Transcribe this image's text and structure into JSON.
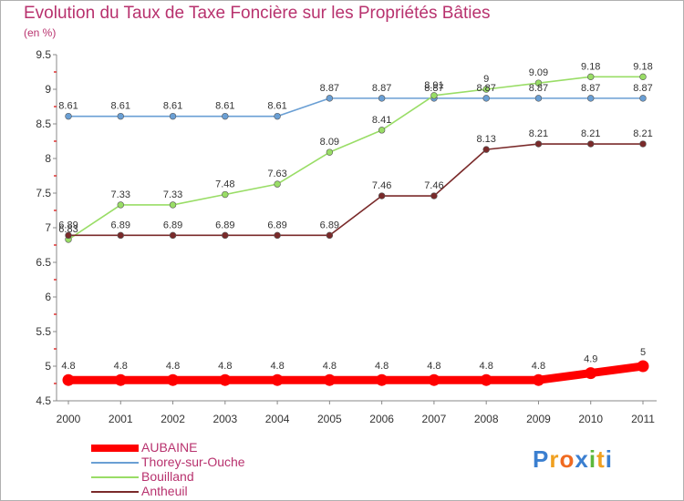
{
  "chart_data": {
    "type": "line",
    "title": "Evolution du Taux de Taxe Foncière sur les Propriétés Bâties",
    "unit_label": "(en %)",
    "xlabel": "",
    "ylabel": "",
    "x": [
      "2000",
      "2001",
      "2002",
      "2003",
      "2004",
      "2005",
      "2006",
      "2007",
      "2008",
      "2009",
      "2010",
      "2011"
    ],
    "ylim": [
      4.5,
      9.5
    ],
    "yticks": [
      "4.5",
      "5",
      "5.5",
      "6",
      "6.5",
      "7",
      "7.5",
      "8",
      "8.5",
      "9",
      "9.5"
    ],
    "grid": false,
    "legend_position": "bottom-left",
    "series": [
      {
        "name": "AUBAINE",
        "color": "#ff0000",
        "values": [
          4.8,
          4.8,
          4.8,
          4.8,
          4.8,
          4.8,
          4.8,
          4.8,
          4.8,
          4.8,
          4.9,
          5
        ],
        "labels": [
          "4.8",
          "4.8",
          "4.8",
          "4.8",
          "4.8",
          "4.8",
          "4.8",
          "4.8",
          "4.8",
          "4.8",
          "4.9",
          "5"
        ]
      },
      {
        "name": "Thorey-sur-Ouche",
        "color": "#6a9fd4",
        "values": [
          8.61,
          8.61,
          8.61,
          8.61,
          8.61,
          8.87,
          8.87,
          8.87,
          8.87,
          8.87,
          8.87,
          8.87
        ],
        "labels": [
          "8.61",
          "8.61",
          "8.61",
          "8.61",
          "8.61",
          "8.87",
          "8.87",
          "8.87",
          "8.87",
          "8.87",
          "8.87",
          "8.87"
        ]
      },
      {
        "name": "Bouilland",
        "color": "#99dd66",
        "values": [
          6.83,
          7.33,
          7.33,
          7.48,
          7.63,
          8.09,
          8.41,
          8.91,
          9,
          9.09,
          9.18,
          9.18
        ],
        "labels": [
          "6.83",
          "7.33",
          "7.33",
          "7.48",
          "7.63",
          "8.09",
          "8.41",
          "8.91",
          "9",
          "9.09",
          "9.18",
          "9.18"
        ]
      },
      {
        "name": "Antheuil",
        "color": "#7a2a2a",
        "values": [
          6.89,
          6.89,
          6.89,
          6.89,
          6.89,
          6.89,
          7.46,
          7.46,
          8.13,
          8.21,
          8.21,
          8.21
        ],
        "labels": [
          "6.89",
          "6.89",
          "6.89",
          "6.89",
          "6.89",
          "6.89",
          "7.46",
          "7.46",
          "8.13",
          "8.21",
          "8.21",
          "8.21"
        ]
      }
    ]
  },
  "logo": {
    "letters": [
      "P",
      "r",
      "o",
      "x",
      "i",
      "t",
      "i"
    ],
    "colors": [
      "#3b7fd0",
      "#f0a020",
      "#f06a20",
      "#3b7fd0",
      "#5cb83c",
      "#f0a020",
      "#3b7fd0"
    ]
  }
}
